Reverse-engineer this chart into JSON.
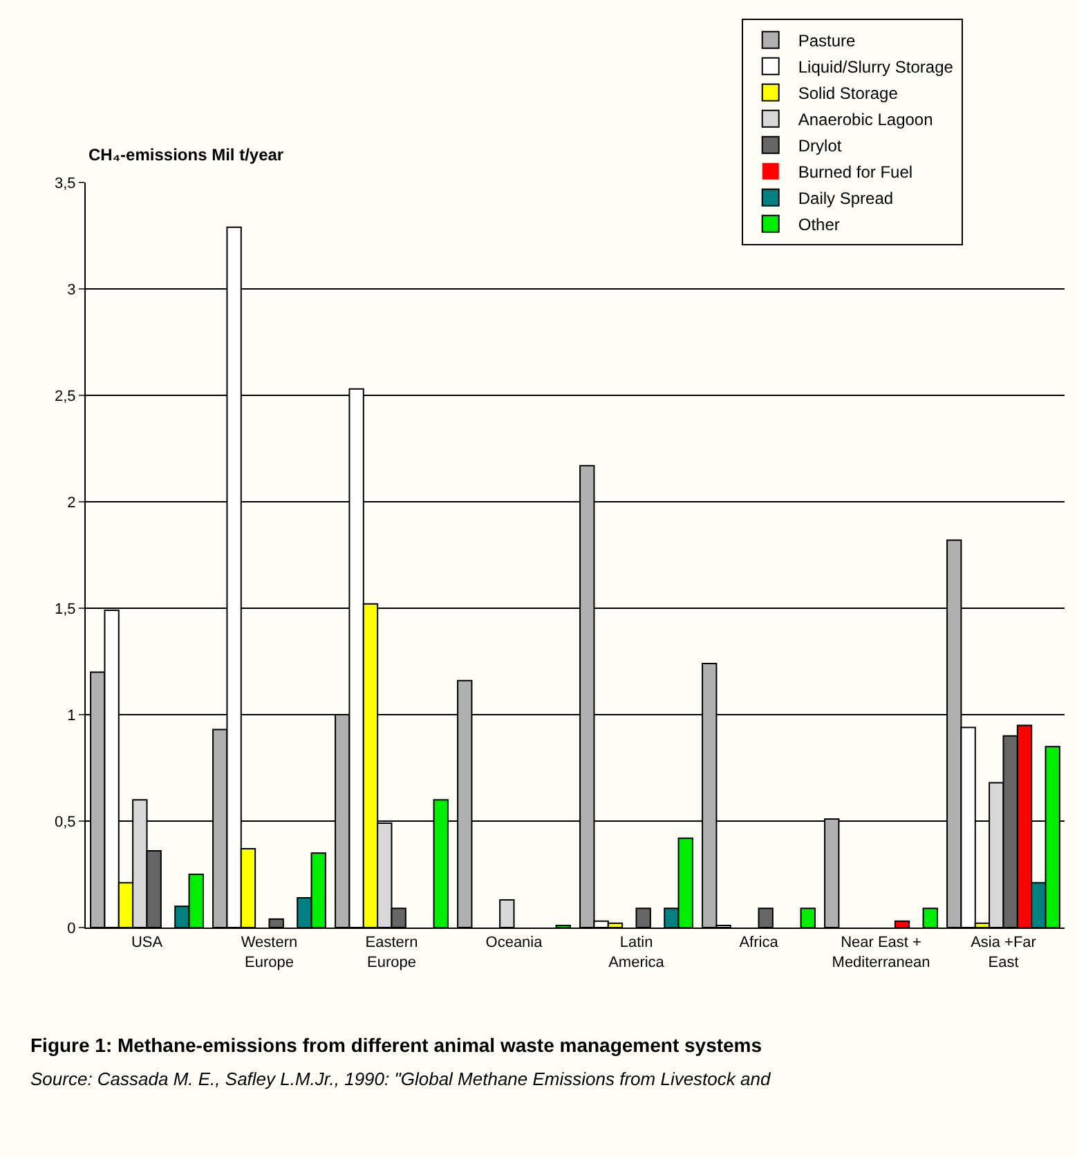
{
  "chart_data": {
    "type": "bar",
    "title": "Figure 1: Methane-emissions from different animal waste management systems",
    "ylabel": "CH₄-emissions Mil t/year",
    "annotations": [
      "Source: Cassada M. E., Safley L.M.Jr., 1990: \"Global Methane Emissions from Livestock and"
    ],
    "categories": [
      "USA",
      "Western\nEurope",
      "Eastern\nEurope",
      "Oceania",
      "Latin\nAmerica",
      "Africa",
      "Near East +\nMediterranean",
      "Asia +Far\nEast"
    ],
    "series": [
      {
        "name": "Pasture",
        "color": "#b0b0b0",
        "values": [
          1.2,
          0.93,
          1.0,
          1.16,
          2.17,
          1.24,
          0.51,
          1.82
        ]
      },
      {
        "name": "Liquid/Slurry Storage",
        "color": "#ffffff",
        "values": [
          1.49,
          3.29,
          2.53,
          0,
          0.03,
          0.01,
          0,
          0.94
        ]
      },
      {
        "name": "Solid Storage",
        "color": "#ffff00",
        "values": [
          0.21,
          0.37,
          1.52,
          0,
          0.02,
          0,
          0,
          0.02
        ]
      },
      {
        "name": "Anaerobic Lagoon",
        "color": "#d8d8d8",
        "values": [
          0.6,
          0,
          0.49,
          0.13,
          0,
          0,
          0,
          0.68
        ]
      },
      {
        "name": "Drylot",
        "color": "#666666",
        "values": [
          0.36,
          0.04,
          0.09,
          0,
          0.09,
          0.09,
          0,
          0.9
        ]
      },
      {
        "name": "Burned for Fuel",
        "color": "#ff0000",
        "values": [
          0,
          0,
          0,
          0,
          0,
          0,
          0.03,
          0.95
        ]
      },
      {
        "name": "Daily Spread",
        "color": "#008080",
        "values": [
          0.1,
          0.14,
          0,
          0,
          0.09,
          0,
          0,
          0.21
        ]
      },
      {
        "name": "Other",
        "color": "#00ee00",
        "values": [
          0.25,
          0.35,
          0.6,
          0.01,
          0.42,
          0.09,
          0.09,
          0.85
        ]
      }
    ],
    "ylim": [
      0,
      3.5
    ],
    "yticks": [
      0,
      {
        "value": 0.5,
        "label": "0,5"
      },
      1,
      {
        "value": 1.5,
        "label": "1,5"
      },
      2,
      {
        "value": 2.5,
        "label": "2,5"
      },
      3,
      {
        "value": 3.5,
        "label": "3,5"
      }
    ],
    "grid": "y",
    "legend": "top right"
  }
}
